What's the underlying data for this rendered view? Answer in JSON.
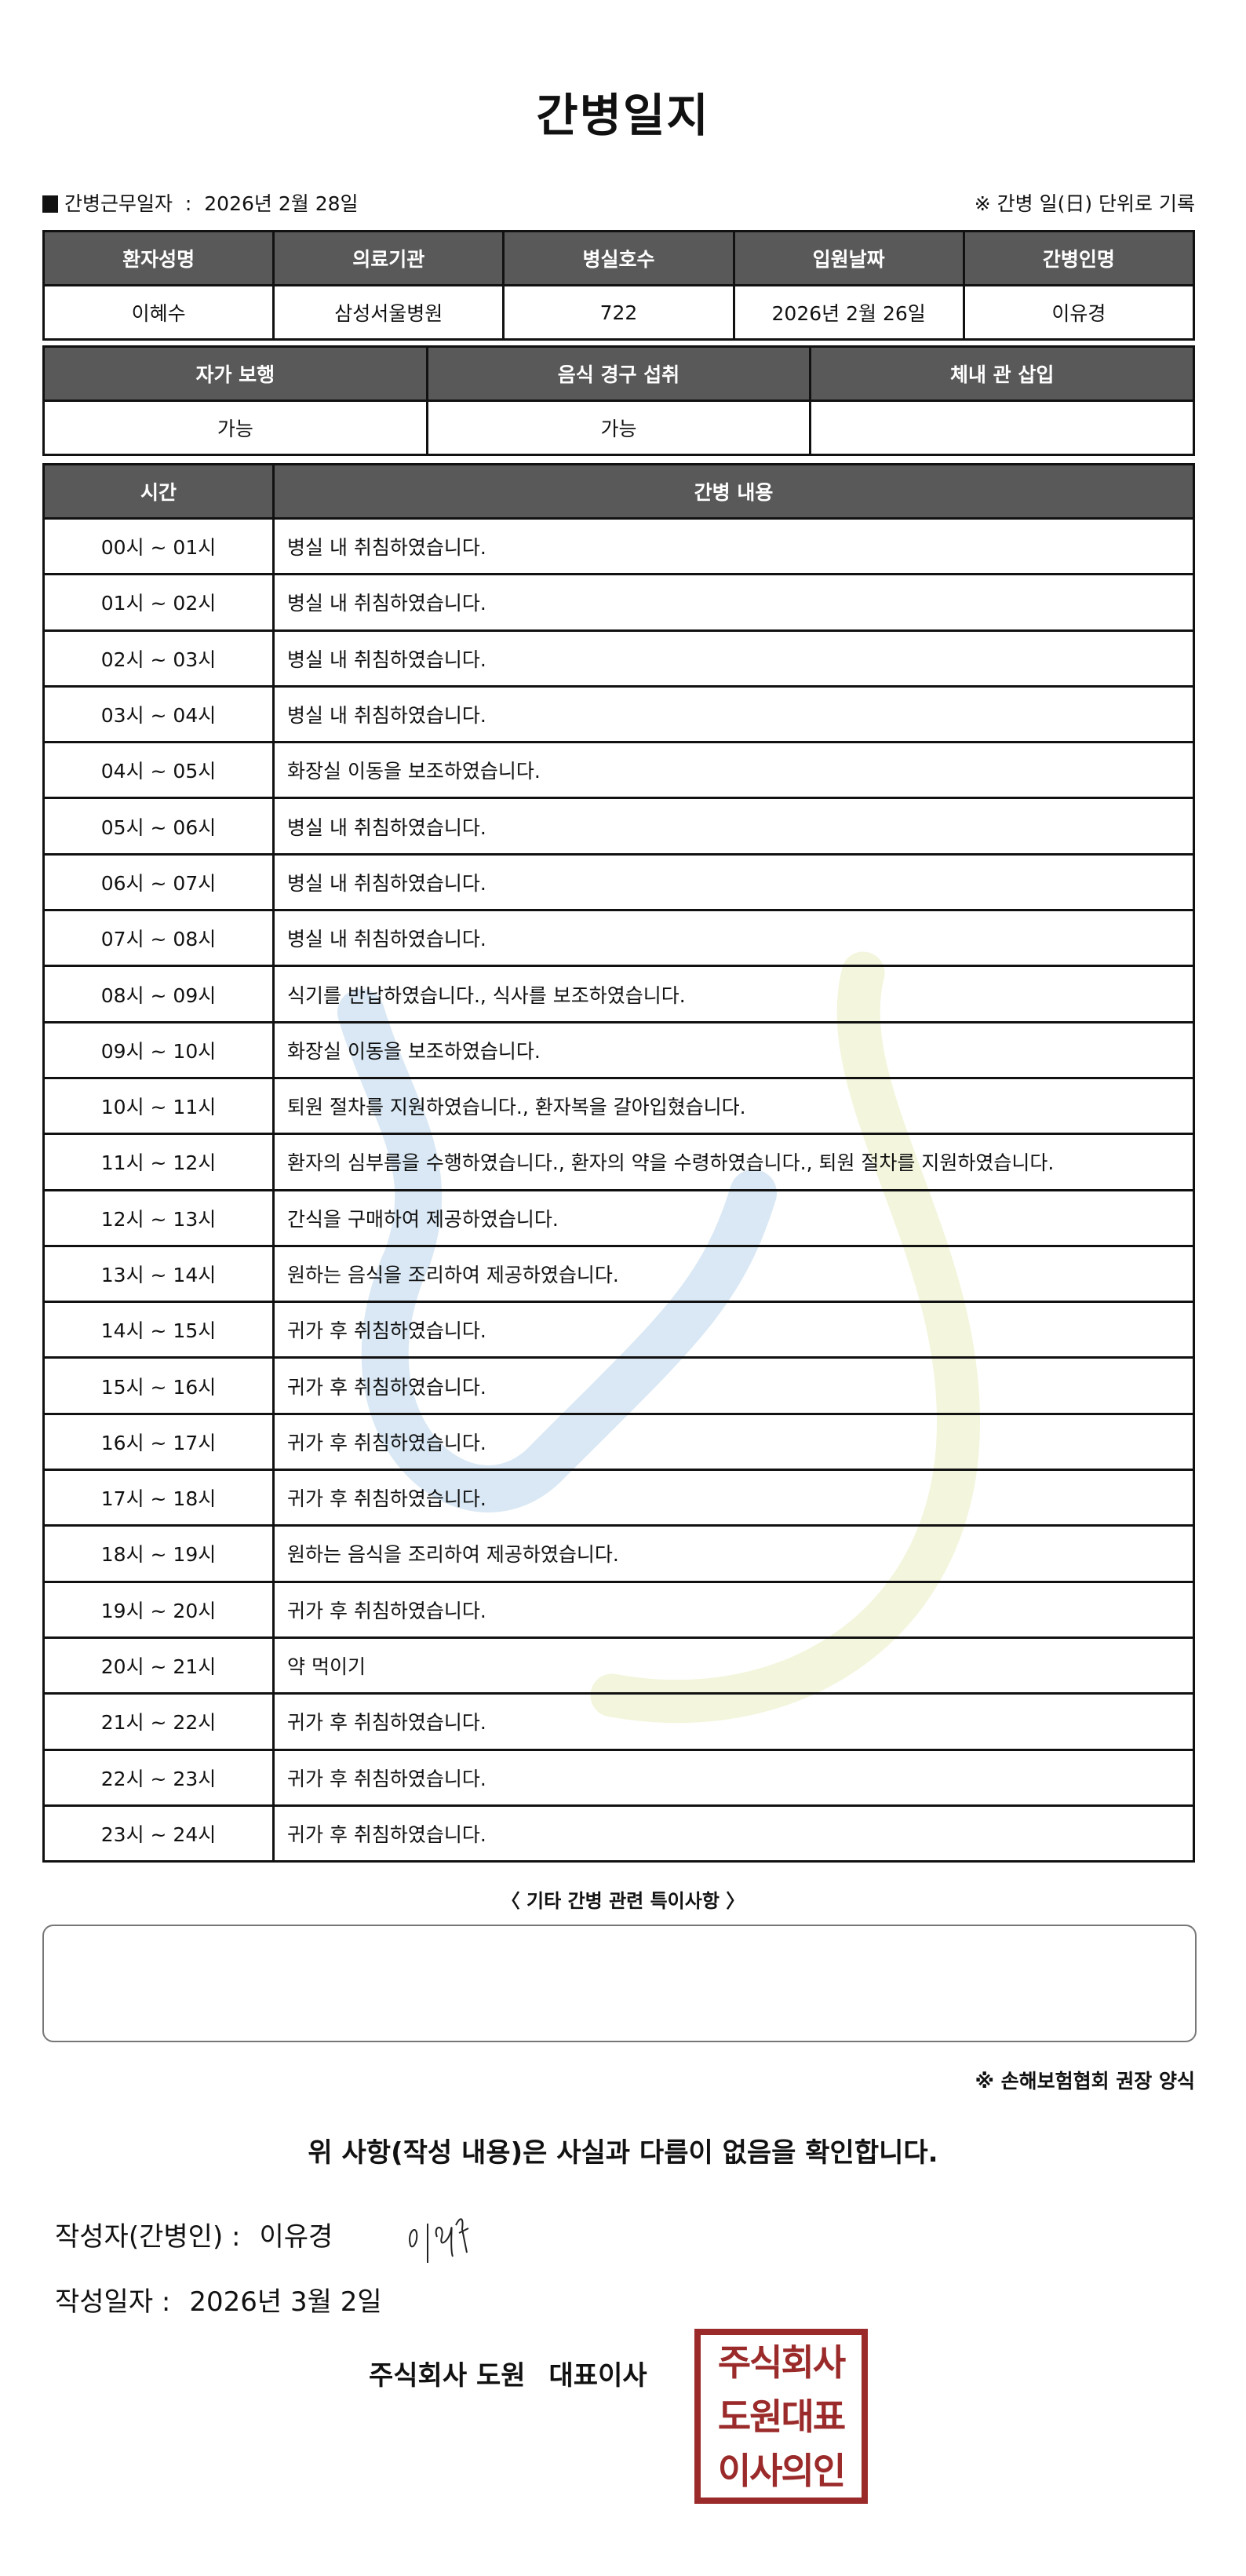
{
  "title": "간병일지",
  "info": {
    "label": "간병근무일자",
    "separator": ":",
    "date": "2026년 2월 28일",
    "unit_note": "※ 간병 일(日) 단위로 기록"
  },
  "patient_table": {
    "headers": [
      "환자성명",
      "의료기관",
      "병실호수",
      "입원날짜",
      "간병인명"
    ],
    "values": [
      "이혜수",
      "삼성서울병원",
      "722",
      "2026년 2월 26일",
      "이유경"
    ]
  },
  "status_table": {
    "headers": [
      "자가 보행",
      "음식 경구 섭취",
      "체내 관 삽입"
    ],
    "values": [
      "가능",
      "가능",
      ""
    ]
  },
  "log_table": {
    "headers": [
      "시간",
      "간병 내용"
    ],
    "rows": [
      {
        "time": "00시 ~ 01시",
        "content": "병실 내 취침하였습니다."
      },
      {
        "time": "01시 ~ 02시",
        "content": "병실 내 취침하였습니다."
      },
      {
        "time": "02시 ~ 03시",
        "content": "병실 내 취침하였습니다."
      },
      {
        "time": "03시 ~ 04시",
        "content": "병실 내 취침하였습니다."
      },
      {
        "time": "04시 ~ 05시",
        "content": "화장실 이동을 보조하였습니다."
      },
      {
        "time": "05시 ~ 06시",
        "content": "병실 내 취침하였습니다."
      },
      {
        "time": "06시 ~ 07시",
        "content": "병실 내 취침하였습니다."
      },
      {
        "time": "07시 ~ 08시",
        "content": "병실 내 취침하였습니다."
      },
      {
        "time": "08시 ~ 09시",
        "content": "식기를 반납하였습니다., 식사를 보조하였습니다."
      },
      {
        "time": "09시 ~ 10시",
        "content": "화장실 이동을 보조하였습니다."
      },
      {
        "time": "10시 ~ 11시",
        "content": "퇴원 절차를 지원하였습니다., 환자복을 갈아입혔습니다."
      },
      {
        "time": "11시 ~ 12시",
        "content": "환자의 심부름을 수행하였습니다., 환자의 약을 수령하였습니다., 퇴원 절차를 지원하였습니다."
      },
      {
        "time": "12시 ~ 13시",
        "content": "간식을 구매하여 제공하였습니다."
      },
      {
        "time": "13시 ~ 14시",
        "content": "원하는 음식을 조리하여 제공하였습니다."
      },
      {
        "time": "14시 ~ 15시",
        "content": "귀가 후 취침하였습니다."
      },
      {
        "time": "15시 ~ 16시",
        "content": "귀가 후 취침하였습니다."
      },
      {
        "time": "16시 ~ 17시",
        "content": "귀가 후 취침하였습니다."
      },
      {
        "time": "17시 ~ 18시",
        "content": "귀가 후 취침하였습니다."
      },
      {
        "time": "18시 ~ 19시",
        "content": "원하는 음식을 조리하여 제공하였습니다."
      },
      {
        "time": "19시 ~ 20시",
        "content": "귀가 후 취침하였습니다."
      },
      {
        "time": "20시 ~ 21시",
        "content": "약 먹이기"
      },
      {
        "time": "21시 ~ 22시",
        "content": "귀가 후 취침하였습니다."
      },
      {
        "time": "22시 ~ 23시",
        "content": "귀가 후 취침하였습니다."
      },
      {
        "time": "23시 ~ 24시",
        "content": "귀가 후 취침하였습니다."
      }
    ]
  },
  "notes": {
    "label": "〈 기타 간병 관련 특이사항 〉",
    "value": ""
  },
  "form_note": "※ 손해보험협회 권장 양식",
  "confirmation": "위 사항(작성 내용)은 사실과 다름이 없음을 확인합니다.",
  "writer": {
    "label": "작성자(간병인) :",
    "name": "이유경"
  },
  "written_date": {
    "label": "작성일자 :",
    "value": "2026년 3월 2일"
  },
  "company": {
    "name": "주식회사 도원",
    "representative": "대표이사"
  },
  "stamp": {
    "rows": [
      "주식회사",
      "도원대표",
      "이사의인"
    ]
  },
  "colors": {
    "header_bg": "#595959",
    "stamp": "#9b2a2a",
    "watermark_blue": "#d9e8f4",
    "watermark_yellow": "#f3f5dc"
  }
}
